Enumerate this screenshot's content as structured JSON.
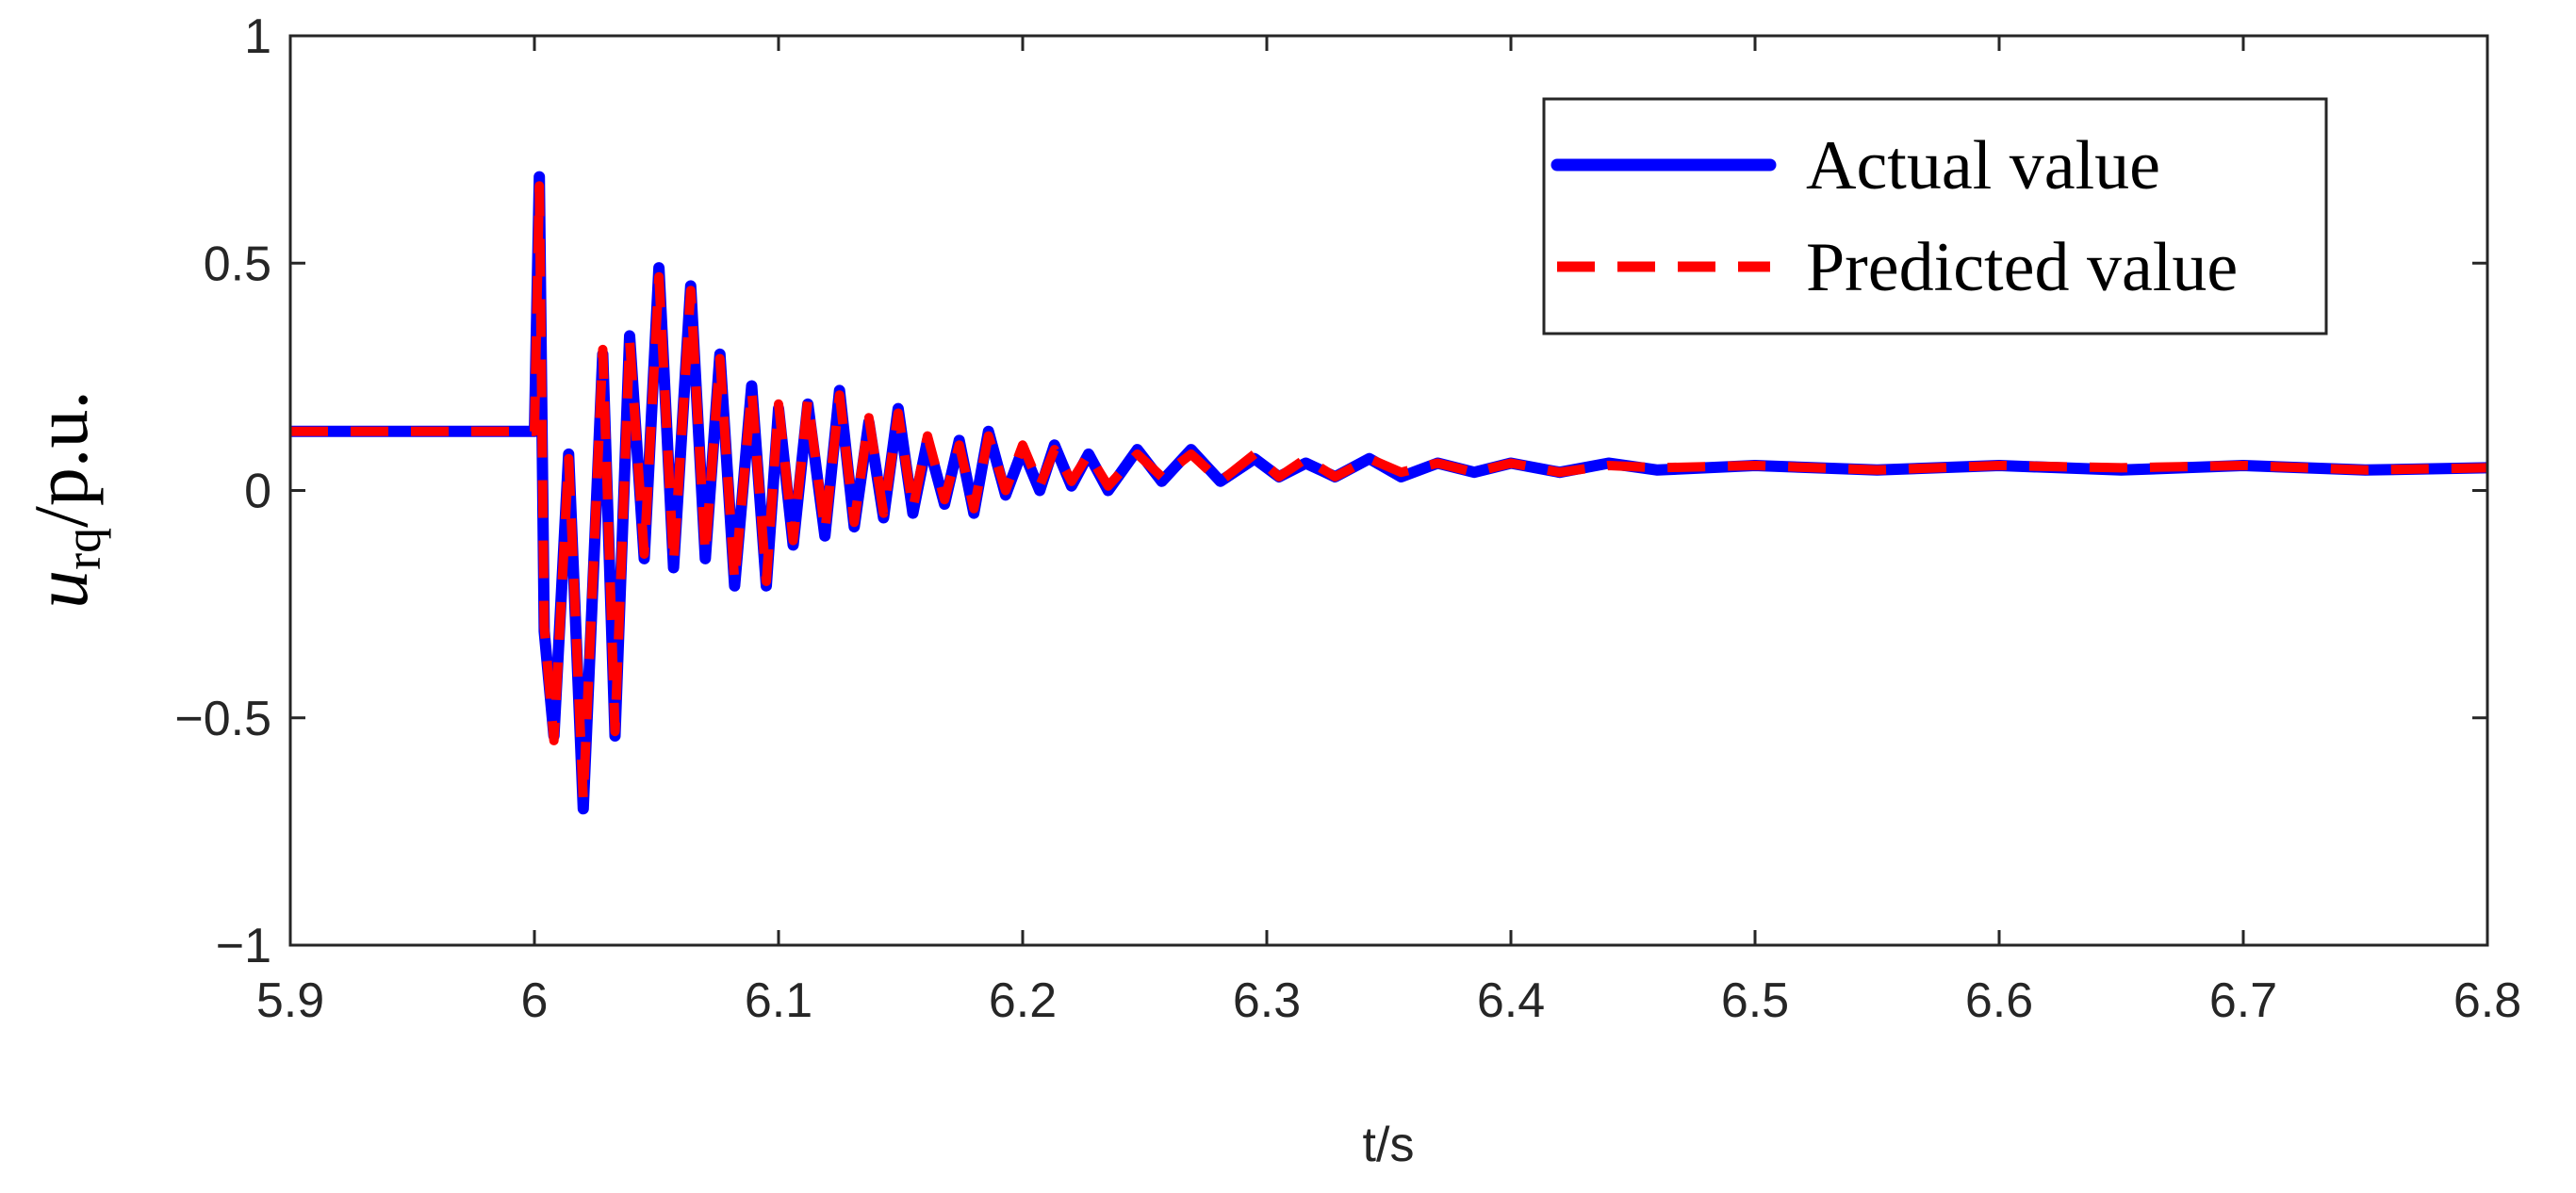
{
  "chart_data": {
    "type": "line",
    "xlabel": "t/s",
    "ylabel": {
      "base": "u",
      "sub": "rq",
      "unit": "/p.u."
    },
    "xlim": [
      5.9,
      6.8
    ],
    "ylim": [
      -1,
      1
    ],
    "xticks": [
      5.9,
      {
        "value": 6.0,
        "label": "6"
      },
      6.1,
      6.2,
      6.3,
      6.4,
      6.5,
      6.6,
      6.7,
      6.8
    ],
    "yticks": [
      {
        "value": -1,
        "label": "−1"
      },
      {
        "value": -0.5,
        "label": "−0.5"
      },
      0,
      0.5,
      1
    ],
    "legend": "upper right",
    "x": [
      5.9,
      6.0,
      6.002,
      6.004,
      6.008,
      6.014,
      6.02,
      6.028,
      6.033,
      6.039,
      6.045,
      6.051,
      6.057,
      6.064,
      6.07,
      6.076,
      6.082,
      6.089,
      6.095,
      6.1,
      6.106,
      6.112,
      6.119,
      6.125,
      6.131,
      6.137,
      6.143,
      6.149,
      6.155,
      6.161,
      6.168,
      6.174,
      6.18,
      6.186,
      6.193,
      6.2,
      6.207,
      6.213,
      6.22,
      6.227,
      6.235,
      6.247,
      6.257,
      6.269,
      6.281,
      6.295,
      6.305,
      6.316,
      6.328,
      6.342,
      6.355,
      6.37,
      6.385,
      6.4,
      6.42,
      6.44,
      6.46,
      6.5,
      6.55,
      6.6,
      6.65,
      6.7,
      6.75,
      6.8
    ],
    "series": [
      {
        "name": "Actual value",
        "color": "#0000ff",
        "style": "solid",
        "values": [
          0.13,
          0.13,
          0.69,
          -0.31,
          -0.54,
          0.08,
          -0.7,
          0.3,
          -0.54,
          0.34,
          -0.15,
          0.49,
          -0.17,
          0.45,
          -0.15,
          0.3,
          -0.21,
          0.23,
          -0.21,
          0.18,
          -0.12,
          0.19,
          -0.1,
          0.22,
          -0.08,
          0.15,
          -0.06,
          0.18,
          -0.05,
          0.11,
          -0.03,
          0.11,
          -0.05,
          0.13,
          -0.01,
          0.09,
          0.0,
          0.1,
          0.01,
          0.08,
          0.0,
          0.09,
          0.02,
          0.09,
          0.02,
          0.07,
          0.03,
          0.06,
          0.03,
          0.07,
          0.03,
          0.06,
          0.04,
          0.06,
          0.04,
          0.06,
          0.045,
          0.055,
          0.045,
          0.055,
          0.045,
          0.055,
          0.045,
          0.05
        ]
      },
      {
        "name": "Predicted value",
        "color": "#ff0000",
        "style": "dashed",
        "values": [
          0.13,
          0.13,
          0.67,
          -0.3,
          -0.55,
          0.07,
          -0.68,
          0.31,
          -0.53,
          0.33,
          -0.14,
          0.47,
          -0.16,
          0.44,
          -0.14,
          0.29,
          -0.2,
          0.22,
          -0.2,
          0.19,
          -0.11,
          0.2,
          -0.09,
          0.21,
          -0.07,
          0.16,
          -0.05,
          0.17,
          -0.04,
          0.12,
          -0.02,
          0.1,
          -0.04,
          0.12,
          0.0,
          0.1,
          0.01,
          0.09,
          0.02,
          0.08,
          0.01,
          0.08,
          0.03,
          0.08,
          0.02,
          0.08,
          0.03,
          0.07,
          0.03,
          0.07,
          0.04,
          0.06,
          0.04,
          0.06,
          0.04,
          0.055,
          0.05,
          0.055,
          0.045,
          0.055,
          0.05,
          0.055,
          0.045,
          0.05
        ]
      }
    ]
  }
}
